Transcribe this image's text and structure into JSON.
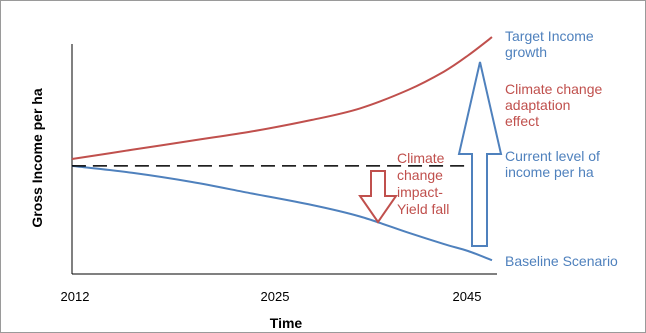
{
  "chart_data": {
    "type": "line",
    "xlabel": "Time",
    "ylabel": "Gross Income per ha",
    "x_ticks": [
      "2012",
      "2025",
      "2045"
    ],
    "xlim": [
      2012,
      2047
    ],
    "ylim": [
      0,
      100
    ],
    "grid": false,
    "series": [
      {
        "name": "Climate change adaptation effect",
        "color": "#c0504d",
        "x": [
          2012,
          2017,
          2022,
          2027,
          2032,
          2036,
          2040,
          2043,
          2045,
          2047
        ],
        "y": [
          50,
          54,
          58,
          62,
          67,
          72,
          80,
          88,
          95,
          103
        ]
      },
      {
        "name": "Baseline Scenario",
        "color": "#4f81bd",
        "x": [
          2012,
          2017,
          2022,
          2027,
          2032,
          2036,
          2040,
          2043,
          2045,
          2047
        ],
        "y": [
          47,
          44,
          40,
          35,
          30,
          25,
          18,
          13,
          10,
          6
        ]
      },
      {
        "name": "Current level of income per ha",
        "color": "#000000",
        "dashed": true,
        "x": [
          2012,
          2047
        ],
        "y": [
          47,
          47
        ]
      }
    ],
    "annotations": {
      "target": {
        "lines": [
          "Target Income",
          "growth"
        ],
        "color": "#4f81bd"
      },
      "adaptation": {
        "lines": [
          "Climate change",
          "adaptation",
          "effect"
        ],
        "color": "#c0504d"
      },
      "current": {
        "lines": [
          "Current level of",
          "income per ha"
        ],
        "color": "#4f81bd"
      },
      "baseline": {
        "lines": [
          "Baseline Scenario"
        ],
        "color": "#4f81bd"
      },
      "impact": {
        "lines": [
          "Climate",
          "change",
          "impact-",
          "Yield fall"
        ],
        "color": "#c0504d"
      }
    },
    "arrows": {
      "down": {
        "color": "#c0504d"
      },
      "up": {
        "color": "#4f81bd"
      }
    }
  }
}
